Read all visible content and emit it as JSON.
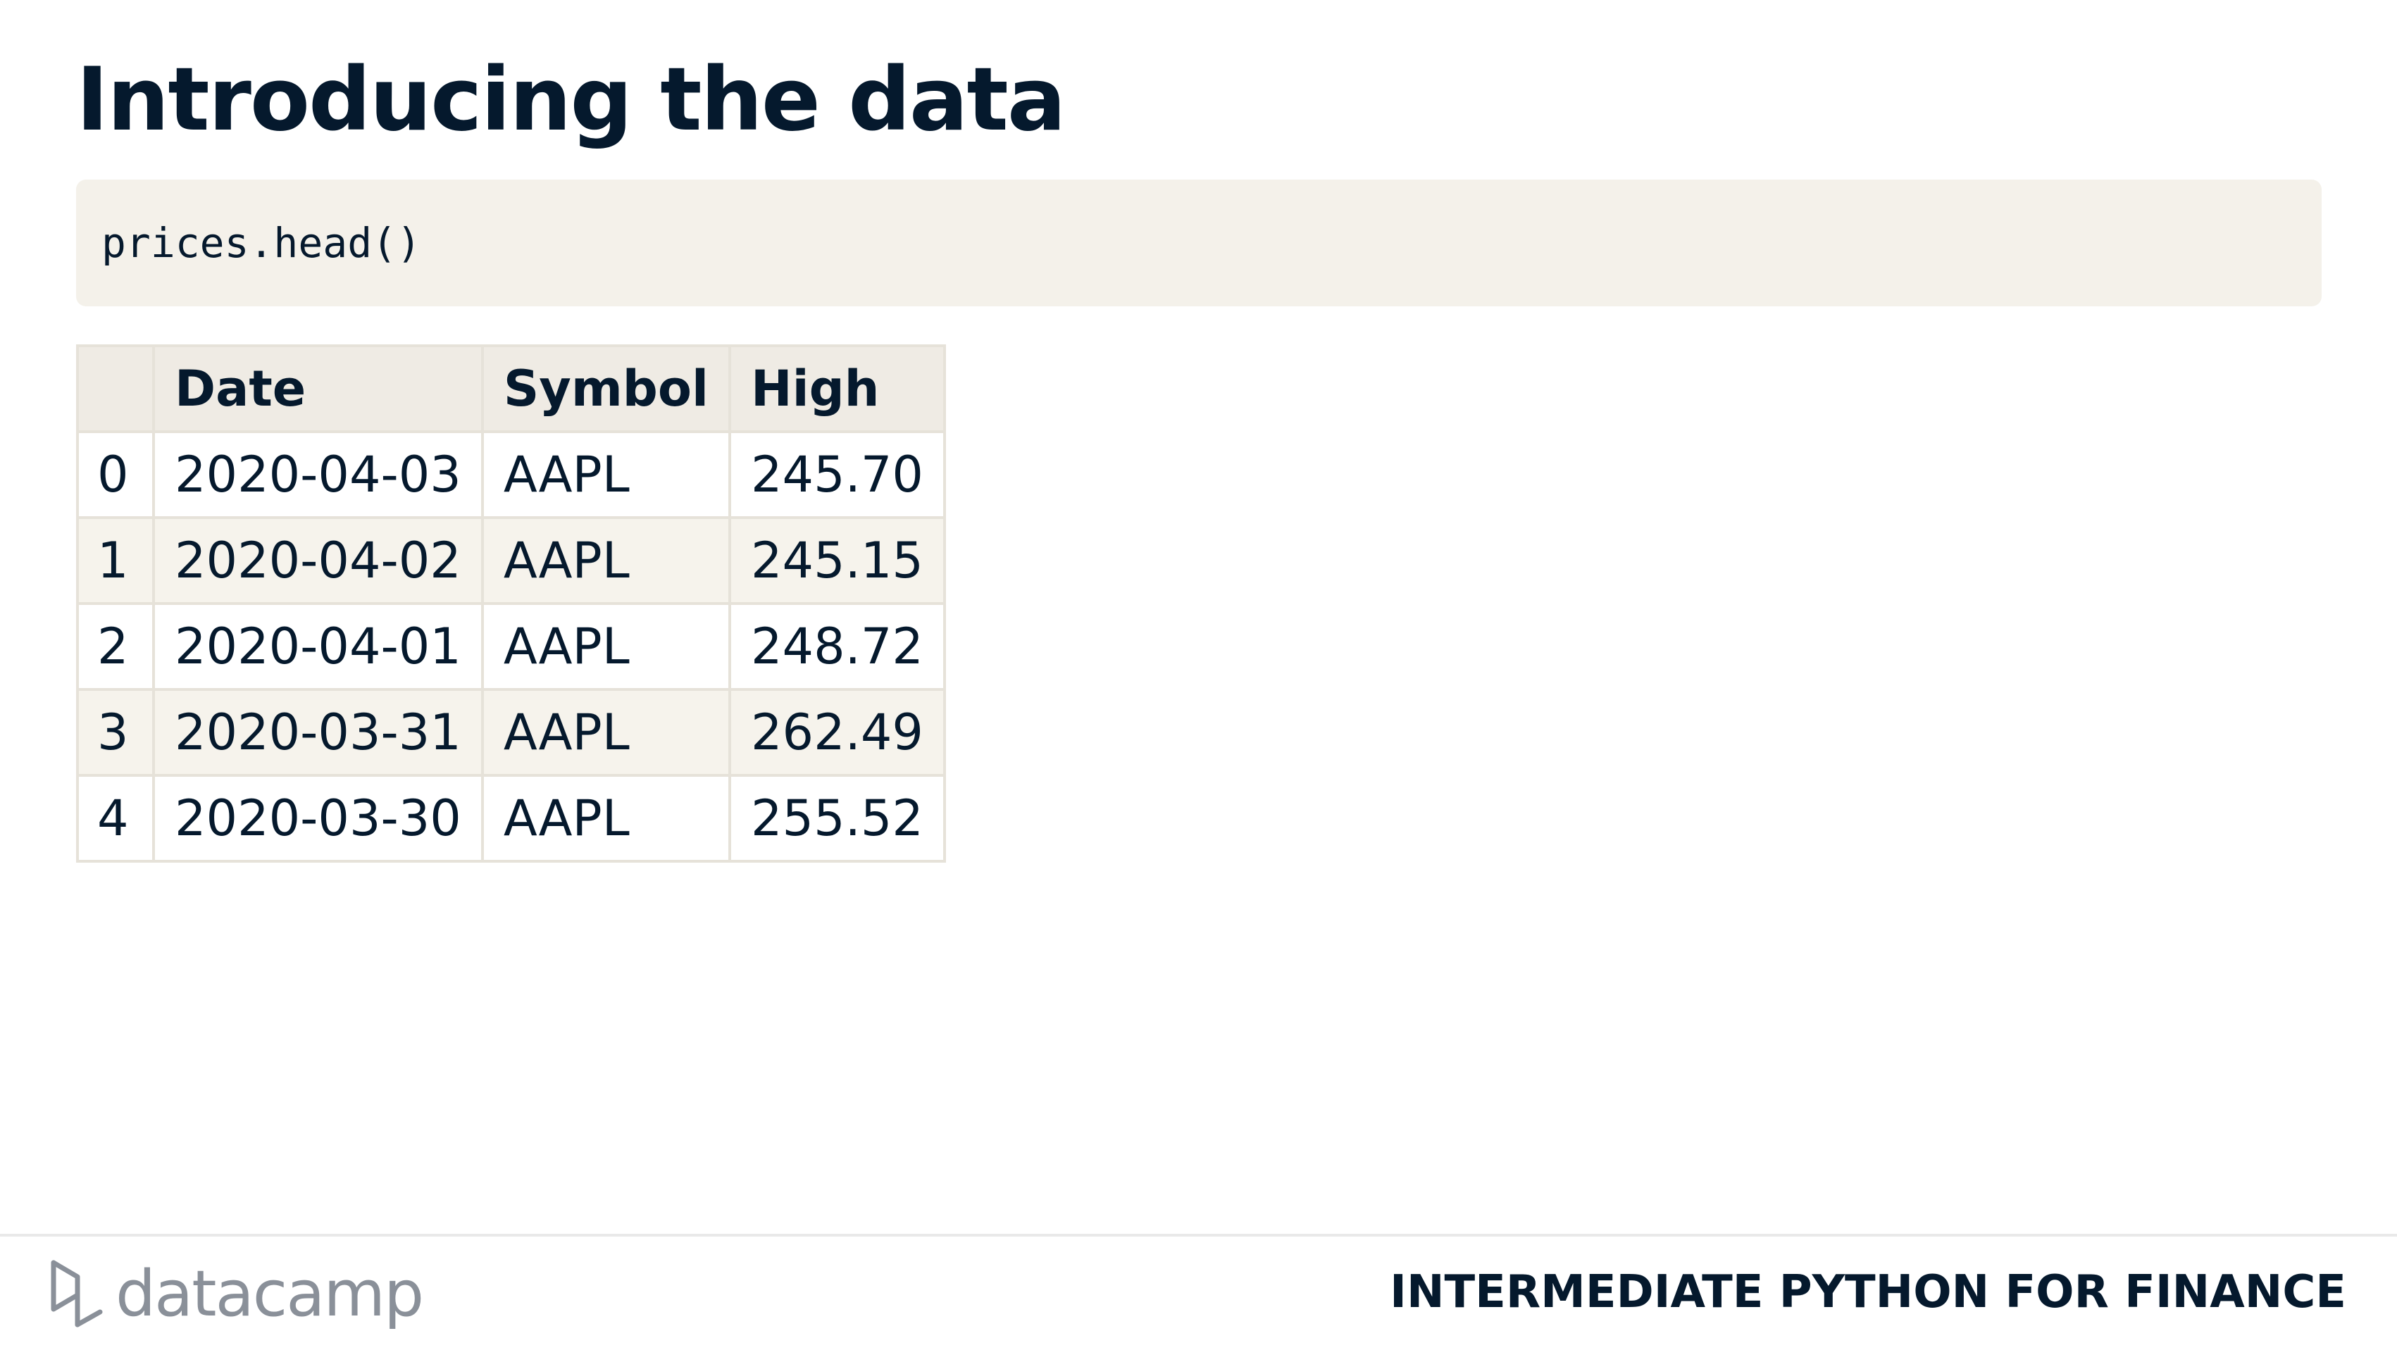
{
  "slide": {
    "title": "Introducing the data"
  },
  "code": {
    "text": "prices.head()"
  },
  "table": {
    "columns": [
      "",
      "Date",
      "Symbol",
      "High"
    ],
    "rows": [
      [
        "0",
        "2020-04-03",
        "AAPL",
        "245.70"
      ],
      [
        "1",
        "2020-04-02",
        "AAPL",
        "245.15"
      ],
      [
        "2",
        "2020-04-01",
        "AAPL",
        "248.72"
      ],
      [
        "3",
        "2020-03-31",
        "AAPL",
        "262.49"
      ],
      [
        "4",
        "2020-03-30",
        "AAPL",
        "255.52"
      ]
    ]
  },
  "footer": {
    "logo_text": "datacamp",
    "logo_icon": "datacamp-logo-icon",
    "course_title": "INTERMEDIATE PYTHON FOR FINANCE"
  },
  "colors": {
    "text": "#05192d",
    "code_background": "#f4f1ea",
    "table_header_background": "#efebe4",
    "table_striped_row": "#f6f3ec",
    "table_border": "#e6e2d9",
    "logo_gray": "#8a9099"
  }
}
